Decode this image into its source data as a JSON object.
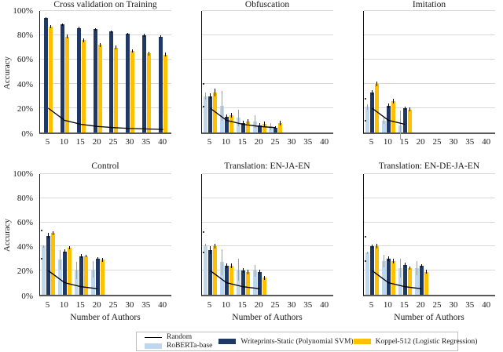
{
  "colors": {
    "random_line": "#000000",
    "roberta": "#BDD7EE",
    "writeprints": "#1F3864",
    "koppel": "#FFC000",
    "grid": "#D9D9D9",
    "x_axis": "#595959",
    "y_axis": "#111111",
    "legend_border": "#BFBFBF"
  },
  "axes": {
    "ylabel": "Accuracy",
    "xlabel": "Number of Authors",
    "ylim": [
      0,
      100
    ],
    "grid": "horizontal",
    "yticks": [
      {
        "value": 0,
        "label": "0%"
      },
      {
        "value": 20,
        "label": "20%"
      },
      {
        "value": 40,
        "label": "40%"
      },
      {
        "value": 60,
        "label": "60%"
      },
      {
        "value": 80,
        "label": "80%"
      },
      {
        "value": 100,
        "label": "100%"
      }
    ],
    "xticks": [
      "5",
      "10",
      "15",
      "20",
      "25",
      "30",
      "35",
      "40"
    ]
  },
  "legend": {
    "position": "bottom",
    "items": [
      {
        "label": "Random",
        "type": "line",
        "color": "#000000"
      },
      {
        "label": "RoBERTa-base",
        "type": "swatch",
        "color": "#BDD7EE"
      },
      {
        "label": "Writeprints-Static (Polynomial SVM)",
        "type": "swatch",
        "color": "#1F3864"
      },
      {
        "label": "Koppel-512 (Logistic Regression)",
        "type": "swatch",
        "color": "#FFC000"
      }
    ]
  },
  "chart_data": [
    {
      "title": "Cross validation on Training",
      "type": "bar",
      "categories": [
        5,
        10,
        15,
        20,
        25,
        30,
        35,
        40
      ],
      "series": [
        {
          "name": "RoBERTa-base",
          "color": "#BDD7EE",
          "err_color": "#9E9E9E",
          "values": [
            null,
            null,
            null,
            null,
            null,
            null,
            null,
            null
          ],
          "errors": [
            null,
            null,
            null,
            null,
            null,
            null,
            null,
            null
          ]
        },
        {
          "name": "Writeprints-Static (Polynomial SVM)",
          "color": "#1F3864",
          "err_color": "#000000",
          "values": [
            94,
            89,
            86,
            85,
            83,
            81,
            80,
            79
          ],
          "errors": [
            1,
            1,
            1,
            1,
            1,
            1,
            1,
            1
          ]
        },
        {
          "name": "Koppel-512 (Logistic Regression)",
          "color": "#FFC000",
          "err_color": "#000000",
          "values": [
            87,
            79,
            76,
            72,
            70,
            67,
            65,
            64
          ],
          "errors": [
            1.5,
            1.5,
            1.5,
            1.5,
            1.5,
            1.5,
            1.5,
            1.5
          ]
        }
      ],
      "random_line": [
        20,
        10,
        6.7,
        5,
        4,
        3.3,
        2.9,
        2.5
      ],
      "outliers": []
    },
    {
      "title": "Obfuscation",
      "type": "bar",
      "categories": [
        5,
        10,
        15,
        20,
        25,
        30,
        35,
        40
      ],
      "series": [
        {
          "name": "RoBERTa-base",
          "color": "#BDD7EE",
          "err_color": "#9E9E9E",
          "values": [
            30,
            22,
            12,
            9,
            5,
            null,
            null,
            null
          ],
          "errors": [
            3,
            12,
            7,
            5,
            3,
            null,
            null,
            null
          ]
        },
        {
          "name": "Writeprints-Static (Polynomial SVM)",
          "color": "#1F3864",
          "err_color": "#000000",
          "values": [
            30,
            13,
            8,
            6,
            4,
            null,
            null,
            null
          ],
          "errors": [
            2,
            2,
            1.5,
            1.5,
            1,
            null,
            null,
            null
          ]
        },
        {
          "name": "Koppel-512 (Logistic Regression)",
          "color": "#FFC000",
          "err_color": "#000000",
          "values": [
            33,
            14,
            9,
            7,
            8,
            null,
            null,
            null
          ],
          "errors": [
            3,
            2,
            2,
            2,
            2,
            null,
            null,
            null
          ]
        }
      ],
      "random_line": [
        20,
        10,
        6.7,
        5,
        4,
        null,
        null,
        null
      ],
      "outliers": [
        {
          "x": 5,
          "y": 40
        },
        {
          "x": 5,
          "y": 21
        }
      ]
    },
    {
      "title": "Imitation",
      "type": "bar",
      "categories": [
        5,
        10,
        15,
        20,
        25,
        30,
        35,
        40
      ],
      "series": [
        {
          "name": "RoBERTa-base",
          "color": "#BDD7EE",
          "err_color": "#9E9E9E",
          "values": [
            21,
            10,
            6,
            null,
            null,
            null,
            null,
            null
          ],
          "errors": [
            2,
            3,
            12,
            null,
            null,
            null,
            null,
            null
          ]
        },
        {
          "name": "Writeprints-Static (Polynomial SVM)",
          "color": "#1F3864",
          "err_color": "#000000",
          "values": [
            33,
            22,
            20,
            null,
            null,
            null,
            null,
            null
          ],
          "errors": [
            2,
            2,
            1.5,
            null,
            null,
            null,
            null,
            null
          ]
        },
        {
          "name": "Koppel-512 (Logistic Regression)",
          "color": "#FFC000",
          "err_color": "#000000",
          "values": [
            40,
            26,
            19,
            null,
            null,
            null,
            null,
            null
          ],
          "errors": [
            2,
            2,
            1.5,
            null,
            null,
            null,
            null,
            null
          ]
        }
      ],
      "random_line": [
        20,
        10,
        6.7,
        null,
        null,
        null,
        null,
        null
      ],
      "outliers": [
        {
          "x": 5,
          "y": 28
        },
        {
          "x": 5,
          "y": 10
        }
      ]
    },
    {
      "title": "Control",
      "type": "bar",
      "categories": [
        5,
        10,
        15,
        20,
        25,
        30,
        35,
        40
      ],
      "series": [
        {
          "name": "RoBERTa-base",
          "color": "#BDD7EE",
          "err_color": "#9E9E9E",
          "values": [
            40,
            29,
            20,
            21,
            null,
            null,
            null,
            null
          ],
          "errors": [
            1,
            8,
            7,
            7,
            null,
            null,
            null,
            null
          ]
        },
        {
          "name": "Writeprints-Static (Polynomial SVM)",
          "color": "#1F3864",
          "err_color": "#000000",
          "values": [
            49,
            36,
            32,
            30,
            null,
            null,
            null,
            null
          ],
          "errors": [
            2,
            1.5,
            1.5,
            1,
            null,
            null,
            null,
            null
          ]
        },
        {
          "name": "Koppel-512 (Logistic Regression)",
          "color": "#FFC000",
          "err_color": "#000000",
          "values": [
            51,
            39,
            32,
            29,
            null,
            null,
            null,
            null
          ],
          "errors": [
            1.5,
            1.5,
            1,
            1.5,
            null,
            null,
            null,
            null
          ]
        }
      ],
      "random_line": [
        20,
        10,
        6.7,
        5,
        null,
        null,
        null,
        null
      ],
      "outliers": [
        {
          "x": 5,
          "y": 53
        },
        {
          "x": 5,
          "y": 30
        }
      ]
    },
    {
      "title": "Translation: EN-JA-EN",
      "type": "bar",
      "categories": [
        5,
        10,
        15,
        20,
        25,
        30,
        35,
        40
      ],
      "series": [
        {
          "name": "RoBERTa-base",
          "color": "#BDD7EE",
          "err_color": "#9E9E9E",
          "values": [
            41,
            27,
            21,
            20,
            null,
            null,
            null,
            null
          ],
          "errors": [
            1,
            11,
            9,
            5,
            null,
            null,
            null,
            null
          ]
        },
        {
          "name": "Writeprints-Static (Polynomial SVM)",
          "color": "#1F3864",
          "err_color": "#000000",
          "values": [
            37,
            24,
            20,
            19,
            null,
            null,
            null,
            null
          ],
          "errors": [
            3,
            2,
            2,
            1.5,
            null,
            null,
            null,
            null
          ]
        },
        {
          "name": "Koppel-512 (Logistic Regression)",
          "color": "#FFC000",
          "err_color": "#000000",
          "values": [
            40,
            24,
            19,
            14,
            null,
            null,
            null,
            null
          ],
          "errors": [
            2,
            2,
            2,
            1.5,
            null,
            null,
            null,
            null
          ]
        }
      ],
      "random_line": [
        20,
        10,
        6.7,
        5,
        null,
        null,
        null,
        null
      ],
      "outliers": [
        {
          "x": 5,
          "y": 52
        },
        {
          "x": 5,
          "y": 35
        }
      ]
    },
    {
      "title": "Translation: EN-DE-JA-EN",
      "type": "bar",
      "categories": [
        5,
        10,
        15,
        20,
        25,
        30,
        35,
        40
      ],
      "series": [
        {
          "name": "RoBERTa-base",
          "color": "#BDD7EE",
          "err_color": "#9E9E9E",
          "values": [
            35,
            28,
            22,
            22,
            null,
            null,
            null,
            null
          ],
          "errors": [
            1,
            5,
            8,
            6,
            null,
            null,
            null,
            null
          ]
        },
        {
          "name": "Writeprints-Static (Polynomial SVM)",
          "color": "#1F3864",
          "err_color": "#000000",
          "values": [
            40,
            30,
            25,
            24,
            null,
            null,
            null,
            null
          ],
          "errors": [
            1.5,
            2,
            1.5,
            1.5,
            null,
            null,
            null,
            null
          ]
        },
        {
          "name": "Koppel-512 (Logistic Regression)",
          "color": "#FFC000",
          "err_color": "#000000",
          "values": [
            40,
            28,
            22,
            19,
            null,
            null,
            null,
            null
          ],
          "errors": [
            2,
            2,
            1.5,
            1.5,
            null,
            null,
            null,
            null
          ]
        }
      ],
      "random_line": [
        20,
        10,
        6.7,
        5,
        null,
        null,
        null,
        null
      ],
      "outliers": [
        {
          "x": 5,
          "y": 48
        },
        {
          "x": 5,
          "y": 28
        }
      ]
    }
  ]
}
